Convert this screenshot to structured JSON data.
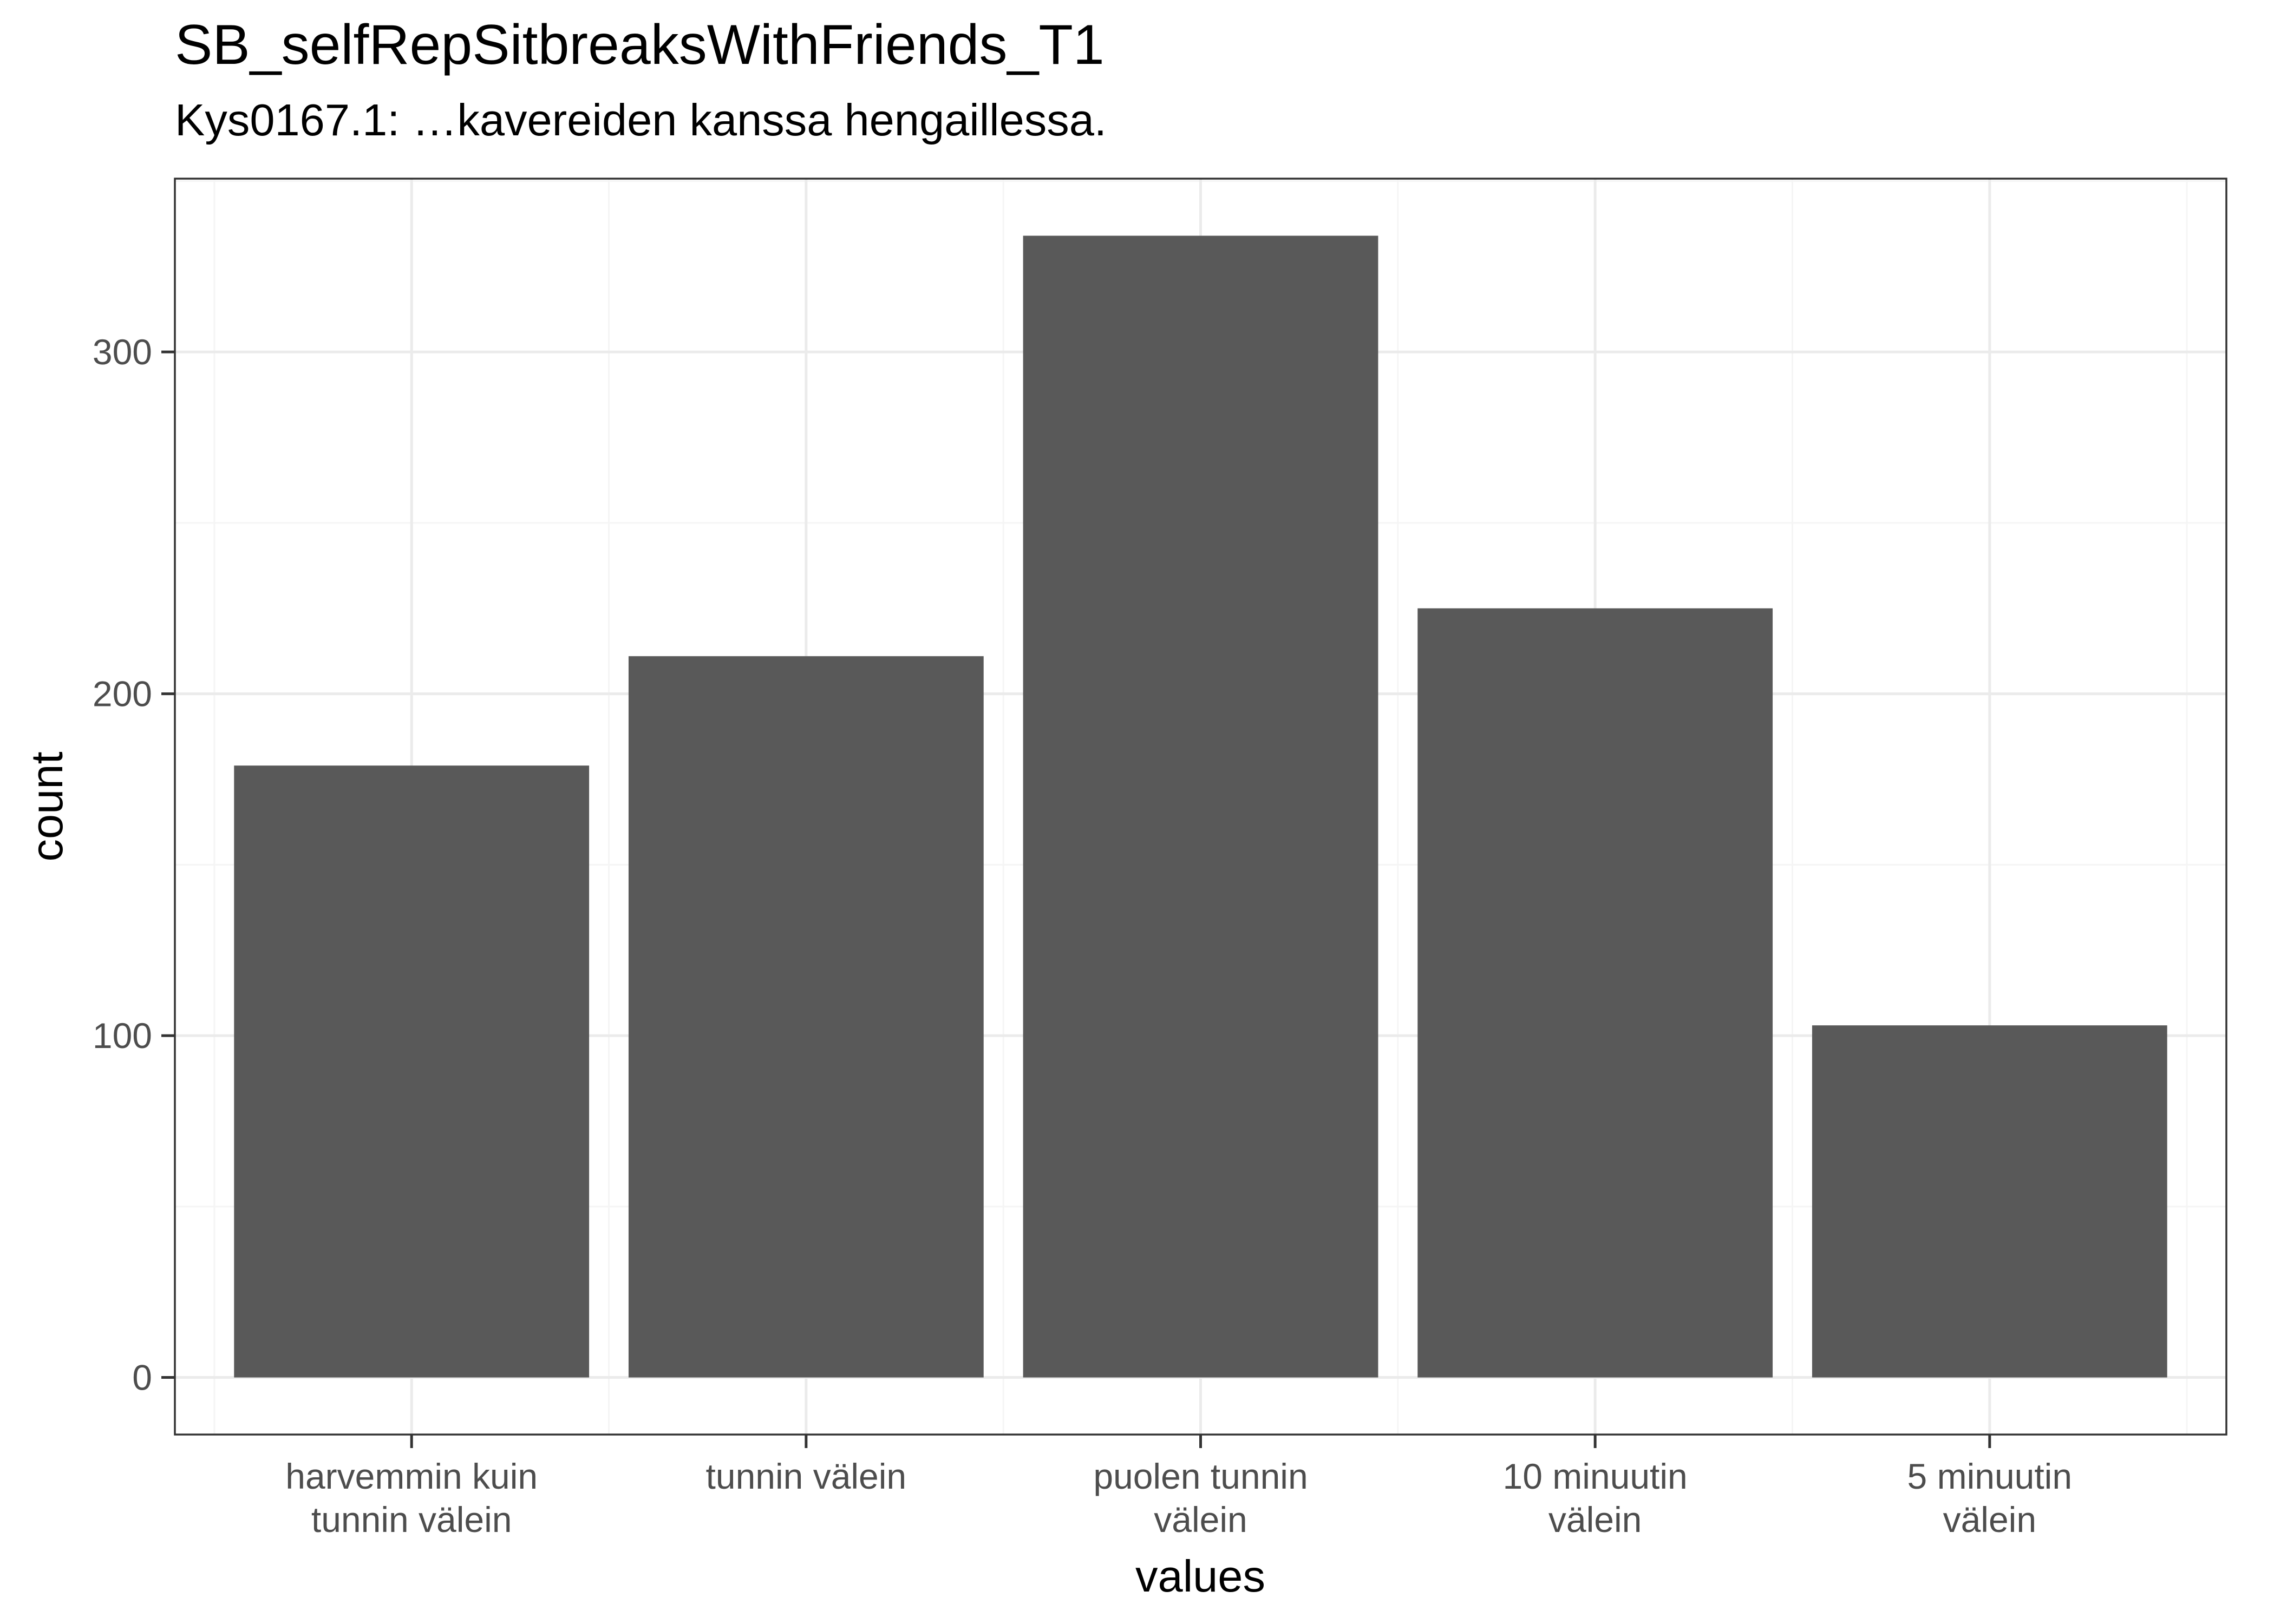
{
  "chart_data": {
    "type": "bar",
    "title": "SB_selfRepSitbreaksWithFriends_T1",
    "subtitle": "Kys0167.1: …kavereiden kanssa hengaillessa.",
    "xlabel": "values",
    "ylabel": "count",
    "categories": [
      [
        "harvemmin kuin",
        "tunnin välein"
      ],
      [
        "tunnin välein"
      ],
      [
        "puolen tunnin",
        "välein"
      ],
      [
        "10 minuutin",
        "välein"
      ],
      [
        "5 minuutin",
        "välein"
      ]
    ],
    "values": [
      179,
      211,
      334,
      225,
      103
    ],
    "ylim": [
      -16.7,
      350.7
    ],
    "yticks": [
      0,
      100,
      200,
      300
    ],
    "grid": true,
    "colors": {
      "bar": "#595959",
      "grid_major": "#EBEBEB",
      "grid_minor": "#F5F5F5",
      "panel_border": "#333333",
      "axis_text": "#4D4D4D",
      "title_text": "#000000"
    }
  }
}
